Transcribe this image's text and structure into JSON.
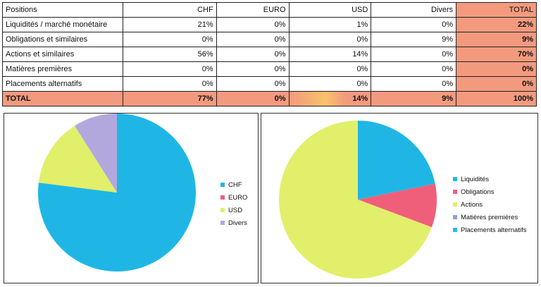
{
  "table": {
    "headers": [
      "Positions",
      "CHF",
      "EURO",
      "USD",
      "Divers",
      "TOTAL"
    ],
    "rows": [
      [
        "Liquidités / marché monétaire",
        "21%",
        "0%",
        "1%",
        "0%",
        "22%"
      ],
      [
        "Obligations et similaires",
        "0%",
        "0%",
        "0%",
        "9%",
        "9%"
      ],
      [
        "Actions et similaires",
        "56%",
        "0%",
        "14%",
        "0%",
        "70%"
      ],
      [
        "Matières premières",
        "0%",
        "0%",
        "0%",
        "0%",
        "0%"
      ],
      [
        "Placements alternatifs",
        "0%",
        "0%",
        "0%",
        "0%",
        "0%"
      ]
    ],
    "total": [
      "TOTAL",
      "77%",
      "0%",
      "14%",
      "9%",
      "100%"
    ]
  },
  "chart_data": [
    {
      "type": "pie",
      "labels": [
        "CHF",
        "EURO",
        "USD",
        "Divers"
      ],
      "values": [
        77,
        0,
        14,
        9
      ],
      "colors": [
        "#1fb6e6",
        "#ef5f7a",
        "#e1ef6a",
        "#b3a8dd"
      ],
      "legend": "right"
    },
    {
      "type": "pie",
      "labels": [
        "Liquidités",
        "Obligations",
        "Actions",
        "Matières premières",
        "Placements alternatifs"
      ],
      "values": [
        22,
        9,
        70,
        0,
        0
      ],
      "colors": [
        "#1fb6e6",
        "#ef5f7a",
        "#e1ef6a",
        "#8f9fd0",
        "#2db8e8"
      ],
      "legend": "right"
    }
  ]
}
